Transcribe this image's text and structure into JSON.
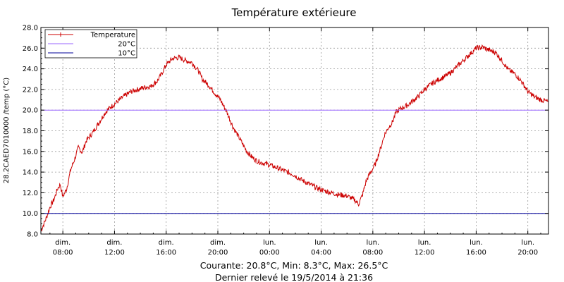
{
  "chart_data": {
    "type": "line",
    "title": "Température extérieure",
    "ylabel": "28.2CAED7010000 /temp  (°C)",
    "xlabel": "",
    "ylim": [
      8,
      28
    ],
    "yticks": [
      "8.0",
      "10.0",
      "12.0",
      "14.0",
      "16.0",
      "18.0",
      "20.0",
      "22.0",
      "24.0",
      "26.0",
      "28.0"
    ],
    "xlim_hours": [
      6.3,
      45.6
    ],
    "x_tick_hours": [
      8,
      12,
      16,
      20,
      24,
      28,
      32,
      36,
      40,
      44
    ],
    "x_ticks": [
      {
        "day": "dim.",
        "time": "08:00"
      },
      {
        "day": "dim.",
        "time": "12:00"
      },
      {
        "day": "dim.",
        "time": "16:00"
      },
      {
        "day": "dim.",
        "time": "20:00"
      },
      {
        "day": "lun.",
        "time": "00:00"
      },
      {
        "day": "lun.",
        "time": "04:00"
      },
      {
        "day": "lun.",
        "time": "08:00"
      },
      {
        "day": "lun.",
        "time": "12:00"
      },
      {
        "day": "lun.",
        "time": "16:00"
      },
      {
        "day": "lun.",
        "time": "20:00"
      }
    ],
    "grid": true,
    "legend_position": "top-left",
    "series": [
      {
        "name": "Temperature",
        "color": "#cc0000",
        "x": [
          6.3,
          6.7,
          7.0,
          7.3,
          7.6,
          7.8,
          8.0,
          8.3,
          8.6,
          8.9,
          9.2,
          9.5,
          9.8,
          10.3,
          10.8,
          11.3,
          11.8,
          12.3,
          12.8,
          13.3,
          13.8,
          14.3,
          14.8,
          15.3,
          15.6,
          16.0,
          16.5,
          17.0,
          17.5,
          18.0,
          18.5,
          18.8,
          19.3,
          19.8,
          20.2,
          20.7,
          21.2,
          21.8,
          22.2,
          22.6,
          23.0,
          23.4,
          24.0,
          24.6,
          25.2,
          25.8,
          26.4,
          27.0,
          27.6,
          28.2,
          28.8,
          29.4,
          30.0,
          30.6,
          30.9,
          31.2,
          31.5,
          31.8,
          32.2,
          32.6,
          32.9,
          33.2,
          33.5,
          33.8,
          34.1,
          34.4,
          34.7,
          35.0,
          35.5,
          36.0,
          36.5,
          37.0,
          37.5,
          38.0,
          38.5,
          39.0,
          39.5,
          40.0,
          40.5,
          41.0,
          41.5,
          42.0,
          42.5,
          43.0,
          43.5,
          44.0,
          44.5,
          45.0,
          45.6
        ],
        "y": [
          8.3,
          9.5,
          10.6,
          11.3,
          12.4,
          12.8,
          11.6,
          12.4,
          14.2,
          15.2,
          16.4,
          15.9,
          17.0,
          17.8,
          18.8,
          19.8,
          20.4,
          20.9,
          21.4,
          21.8,
          22.0,
          22.2,
          22.3,
          22.8,
          23.4,
          24.4,
          25.0,
          25.1,
          24.8,
          24.6,
          23.8,
          23.0,
          22.4,
          21.6,
          21.0,
          19.8,
          18.3,
          17.0,
          16.1,
          15.5,
          15.1,
          14.9,
          14.7,
          14.4,
          14.1,
          13.8,
          13.3,
          12.9,
          12.5,
          12.2,
          12.0,
          11.8,
          11.7,
          11.3,
          10.9,
          11.8,
          13.2,
          13.9,
          14.8,
          16.3,
          17.6,
          18.3,
          18.8,
          19.8,
          20.1,
          20.3,
          20.5,
          20.8,
          21.3,
          22.0,
          22.5,
          22.9,
          23.2,
          23.6,
          24.2,
          24.8,
          25.4,
          26.0,
          26.1,
          25.8,
          25.6,
          24.8,
          23.9,
          23.5,
          22.8,
          21.8,
          21.3,
          21.0,
          20.8
        ]
      },
      {
        "name": "20°C",
        "color": "#9966ff",
        "constant": 20
      },
      {
        "name": "10°C",
        "color": "#000099",
        "constant": 10
      }
    ]
  },
  "footer": {
    "line1": "Courante: 20.8°C,   Min: 8.3°C,   Max: 26.5°C",
    "line2": "Dernier relevé le  19/5/2014 à 21:36"
  }
}
